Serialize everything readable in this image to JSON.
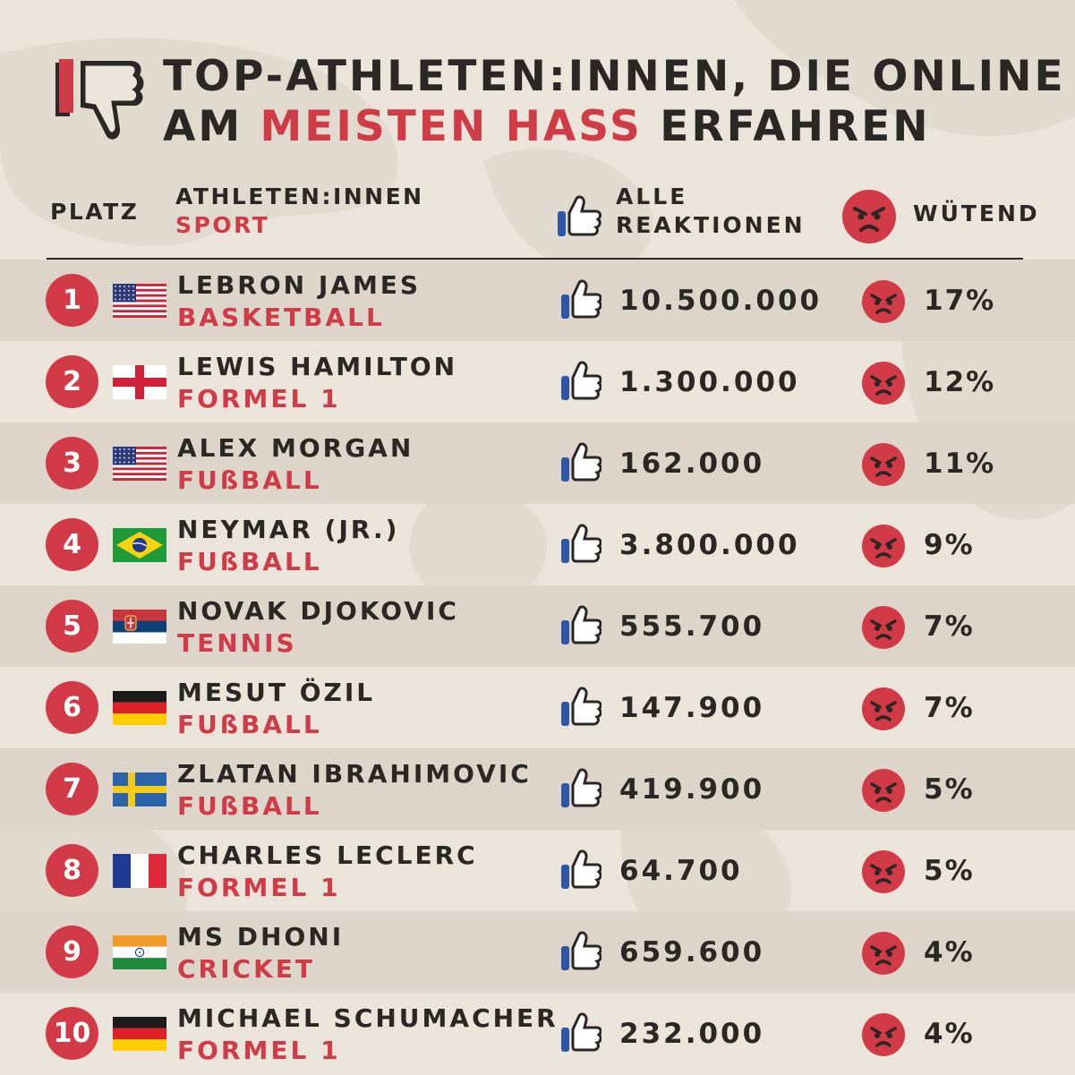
{
  "title": {
    "line1": "TOP-ATHLETEN:INNEN, DIE ONLINE",
    "line2_pre": "AM ",
    "line2_highlight": "MEISTEN HASS",
    "line2_post": " ERFAHREN"
  },
  "header": {
    "platz": "PLATZ",
    "athletes": "ATHLETEN:INNEN",
    "sport": "SPORT",
    "reactions_line1": "ALLE",
    "reactions_line2": "REAKTIONEN",
    "angry": "WÜTEND"
  },
  "colors": {
    "accent_red": "#cf3b46",
    "text_dark": "#2a2724",
    "background": "#ebe4da",
    "row_shade": "#ddd5ca",
    "like_blue": "#2f56a6"
  },
  "rows": [
    {
      "rank": "1",
      "flag": "usa-flag",
      "name": "LEBRON JAMES",
      "sport": "BASKETBALL",
      "reactions": "10.500.000",
      "angry": "17%"
    },
    {
      "rank": "2",
      "flag": "england-flag",
      "name": "LEWIS HAMILTON",
      "sport": "FORMEL 1",
      "reactions": "1.300.000",
      "angry": "12%"
    },
    {
      "rank": "3",
      "flag": "usa-flag",
      "name": "ALEX MORGAN",
      "sport": "FUßBALL",
      "reactions": "162.000",
      "angry": "11%"
    },
    {
      "rank": "4",
      "flag": "brazil-flag",
      "name": "NEYMAR (JR.)",
      "sport": "FUßBALL",
      "reactions": "3.800.000",
      "angry": "9%"
    },
    {
      "rank": "5",
      "flag": "serbia-flag",
      "name": "NOVAK DJOKOVIC",
      "sport": "TENNIS",
      "reactions": "555.700",
      "angry": "7%"
    },
    {
      "rank": "6",
      "flag": "germany-flag",
      "name": "MESUT ÖZIL",
      "sport": "FUßBALL",
      "reactions": "147.900",
      "angry": "7%"
    },
    {
      "rank": "7",
      "flag": "sweden-flag",
      "name": "ZLATAN IBRAHIMOVIC",
      "sport": "FUßBALL",
      "reactions": "419.900",
      "angry": "5%"
    },
    {
      "rank": "8",
      "flag": "france-flag",
      "name": "CHARLES LECLERC",
      "sport": "FORMEL 1",
      "reactions": "64.700",
      "angry": "5%"
    },
    {
      "rank": "9",
      "flag": "india-flag",
      "name": "MS DHONI",
      "sport": "CRICKET",
      "reactions": "659.600",
      "angry": "4%"
    },
    {
      "rank": "10",
      "flag": "germany-flag",
      "name": "MICHAEL SCHUMACHER",
      "sport": "FORMEL 1",
      "reactions": "232.000",
      "angry": "4%"
    }
  ]
}
